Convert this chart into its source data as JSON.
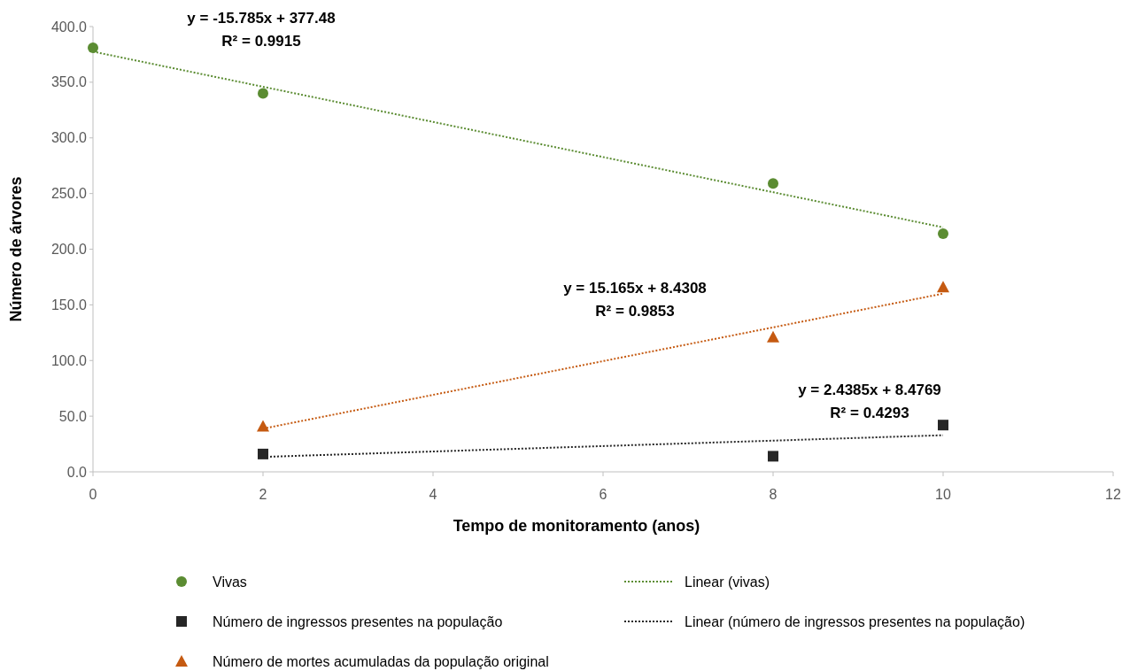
{
  "chart_data": {
    "type": "scatter",
    "xlabel": "Tempo de monitoramento (anos)",
    "ylabel": "Número de árvores",
    "xlim": [
      0,
      12
    ],
    "xticks": [
      0,
      2,
      4,
      6,
      8,
      10,
      12
    ],
    "ylim": [
      0,
      400
    ],
    "yticks": [
      {
        "value": 0,
        "label": "0.0"
      },
      {
        "value": 50,
        "label": "50.0"
      },
      {
        "value": 100,
        "label": "100.0"
      },
      {
        "value": 150,
        "label": "150.0"
      },
      {
        "value": 200,
        "label": "200.0"
      },
      {
        "value": 250,
        "label": "250.0"
      },
      {
        "value": 300,
        "label": "300.0"
      },
      {
        "value": 350,
        "label": "350.0"
      },
      {
        "value": 400,
        "label": "400.0"
      }
    ],
    "grid": false,
    "legend": "bottom",
    "series": [
      {
        "name": "Vivas",
        "color": "#5b8c32",
        "marker": "circle",
        "x": [
          0,
          2,
          8,
          10
        ],
        "values": [
          381,
          340,
          259,
          214
        ]
      },
      {
        "name": "Número de ingressos presentes na população",
        "color": "#262626",
        "marker": "square",
        "x": [
          2,
          8,
          10
        ],
        "values": [
          16,
          14,
          42
        ]
      },
      {
        "name": "Número de mortes acumuladas da população original",
        "color": "#c55a11",
        "marker": "triangle",
        "x": [
          2,
          8,
          10
        ],
        "values": [
          41,
          121,
          166
        ]
      },
      {
        "name": "Linear (vivas)",
        "type": "line",
        "line_style": "dotted",
        "color": "#5b8c32",
        "x": [
          0,
          10
        ],
        "values": [
          377.5,
          219.6
        ]
      },
      {
        "name": "Linear (número de ingressos presentes na população)",
        "type": "line",
        "line_style": "dotted",
        "color": "#262626",
        "x": [
          2,
          10
        ],
        "values": [
          13.4,
          32.9
        ]
      },
      {
        "type": "line",
        "line_style": "dotted",
        "color": "#c55a11",
        "x": [
          2,
          10
        ],
        "values": [
          38.8,
          160.1
        ]
      }
    ],
    "annotations": [
      "y = -15.785x + 377.48\nR² = 0.9915",
      "y = 15.165x + 8.4308\nR² = 0.9853",
      "y = 2.4385x + 8.4769\nR² = 0.4293"
    ]
  }
}
